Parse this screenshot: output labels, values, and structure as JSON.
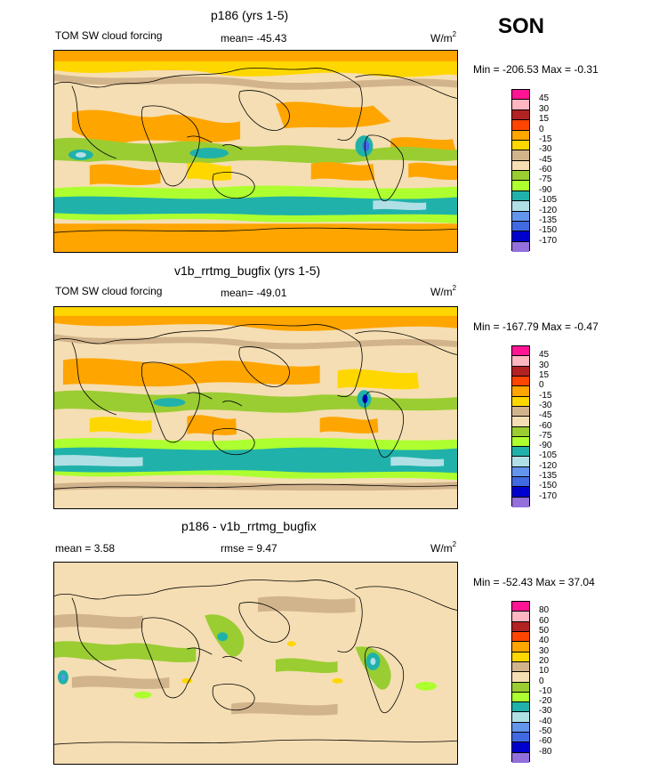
{
  "season": "SON",
  "panels": [
    {
      "id": "p186",
      "title": "p186 (yrs 1-5)",
      "field_label": "TOM SW cloud forcing",
      "stat_text": "mean= -45.43",
      "units_base": "W/m",
      "units_exp": "2",
      "minmax": "Min = -206.53 Max =  -0.31",
      "levels": [
        "45",
        "30",
        "15",
        "0",
        "-15",
        "-30",
        "-45",
        "-60",
        "-75",
        "-90",
        "-105",
        "-120",
        "-135",
        "-150",
        "-170"
      ],
      "colors": [
        "#ff1493",
        "#ffb6c1",
        "#b22222",
        "#ff4500",
        "#ffa500",
        "#ffd700",
        "#d2b48c",
        "#f5deb3",
        "#9acd32",
        "#adff2f",
        "#20b2aa",
        "#b0e0e6",
        "#6495ed",
        "#4169e1",
        "#0000cd",
        "#9370db"
      ]
    },
    {
      "id": "v1b",
      "title": "v1b_rrtmg_bugfix (yrs 1-5)",
      "field_label": "TOM SW cloud forcing",
      "stat_text": "mean= -49.01",
      "units_base": "W/m",
      "units_exp": "2",
      "minmax": "Min = -167.79 Max =  -0.47",
      "levels": [
        "45",
        "30",
        "15",
        "0",
        "-15",
        "-30",
        "-45",
        "-60",
        "-75",
        "-90",
        "-105",
        "-120",
        "-135",
        "-150",
        "-170"
      ],
      "colors": [
        "#ff1493",
        "#ffb6c1",
        "#b22222",
        "#ff4500",
        "#ffa500",
        "#ffd700",
        "#d2b48c",
        "#f5deb3",
        "#9acd32",
        "#adff2f",
        "#20b2aa",
        "#b0e0e6",
        "#6495ed",
        "#4169e1",
        "#0000cd",
        "#9370db"
      ]
    },
    {
      "id": "diff",
      "title": "p186 - v1b_rrtmg_bugfix",
      "field_label": "mean =   3.58",
      "stat_text": "rmse =   9.47",
      "units_base": "W/m",
      "units_exp": "2",
      "minmax": "Min = -52.43 Max =  37.04",
      "levels": [
        "80",
        "60",
        "50",
        "40",
        "30",
        "20",
        "10",
        "0",
        "-10",
        "-20",
        "-30",
        "-40",
        "-50",
        "-60",
        "-80"
      ],
      "colors": [
        "#ff1493",
        "#ffb6c1",
        "#b22222",
        "#ff4500",
        "#ffa500",
        "#ffd700",
        "#d2b48c",
        "#f5deb3",
        "#9acd32",
        "#adff2f",
        "#20b2aa",
        "#b0e0e6",
        "#6495ed",
        "#4169e1",
        "#0000cd",
        "#9370db"
      ]
    }
  ],
  "chart_data": {
    "type": "heatmap",
    "season": "SON",
    "maps": [
      {
        "title": "p186 (yrs 1-5)",
        "variable": "TOM SW cloud forcing",
        "mean": -45.43,
        "min": -206.53,
        "max": -0.31,
        "units": "W/m2",
        "contour_levels": [
          45,
          30,
          15,
          0,
          -15,
          -30,
          -45,
          -60,
          -75,
          -90,
          -105,
          -120,
          -135,
          -150,
          -170
        ]
      },
      {
        "title": "v1b_rrtmg_bugfix (yrs 1-5)",
        "variable": "TOM SW cloud forcing",
        "mean": -49.01,
        "min": -167.79,
        "max": -0.47,
        "units": "W/m2",
        "contour_levels": [
          45,
          30,
          15,
          0,
          -15,
          -30,
          -45,
          -60,
          -75,
          -90,
          -105,
          -120,
          -135,
          -150,
          -170
        ]
      },
      {
        "title": "p186 - v1b_rrtmg_bugfix",
        "mean": 3.58,
        "rmse": 9.47,
        "min": -52.43,
        "max": 37.04,
        "units": "W/m2",
        "contour_levels": [
          80,
          60,
          50,
          40,
          30,
          20,
          10,
          0,
          -10,
          -20,
          -30,
          -40,
          -50,
          -60,
          -80
        ]
      }
    ]
  }
}
